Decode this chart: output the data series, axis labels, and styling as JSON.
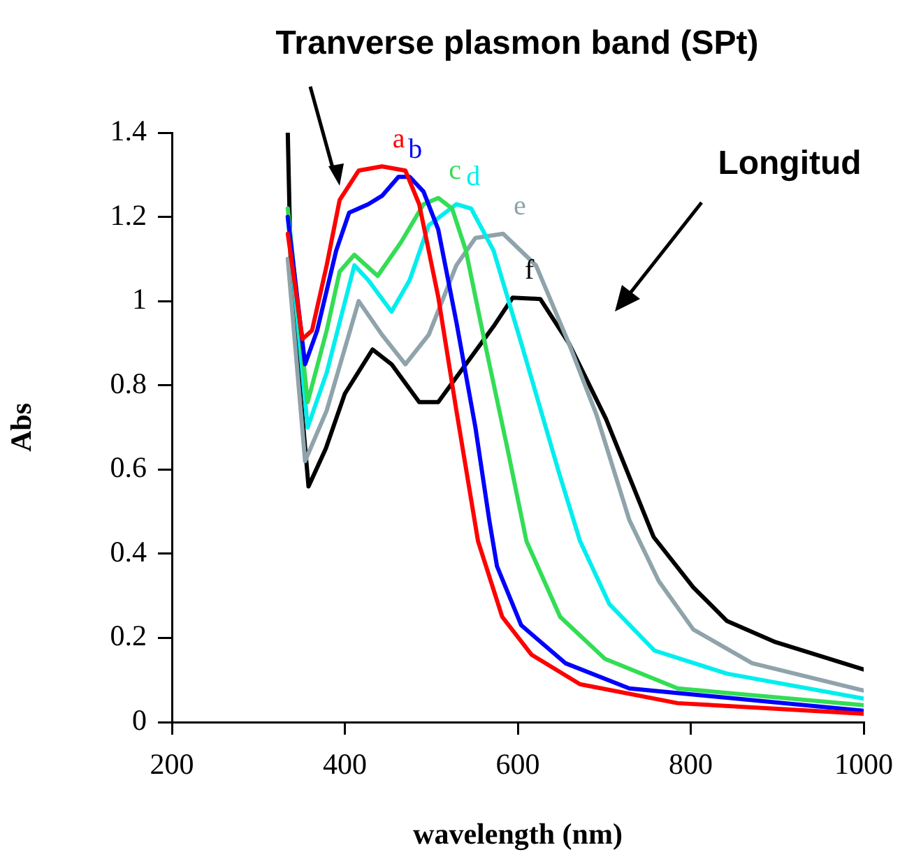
{
  "chart_data": {
    "type": "line",
    "xlabel": "wavelength (nm)",
    "ylabel": "Abs",
    "xlim": [
      200,
      1000
    ],
    "xticks": [
      200,
      400,
      600,
      800,
      1000
    ],
    "ylim": [
      0,
      1.4
    ],
    "yticks": [
      0,
      0.2,
      0.4,
      0.6,
      0.8,
      1,
      1.2,
      1.4
    ],
    "grid": false,
    "legend": false,
    "marker": "none",
    "line_style": "solid",
    "annotations": [
      "Tranverse plasmon band (SPt)",
      "Longitud"
    ],
    "series": [
      {
        "name": "a",
        "color": "#ff0000",
        "x": [
          334,
          351,
          362,
          379,
          394,
          416,
          443,
          470,
          486,
          508,
          529,
          554,
          582,
          616,
          672,
          785,
          1000
        ],
        "values": [
          1.16,
          0.91,
          0.93,
          1.085,
          1.24,
          1.31,
          1.32,
          1.31,
          1.23,
          1.01,
          0.74,
          0.43,
          0.25,
          0.16,
          0.09,
          0.045,
          0.02
        ]
      },
      {
        "name": "b",
        "color": "#0000ff",
        "x": [
          334,
          354,
          368,
          390,
          405,
          427,
          443,
          462,
          475,
          491,
          508,
          529,
          551,
          567,
          576,
          604,
          655,
          729,
          1000
        ],
        "values": [
          1.2,
          0.85,
          0.93,
          1.12,
          1.21,
          1.23,
          1.25,
          1.295,
          1.295,
          1.26,
          1.17,
          0.95,
          0.7,
          0.48,
          0.37,
          0.23,
          0.14,
          0.08,
          0.027
        ]
      },
      {
        "name": "c",
        "color": "#33dd55",
        "x": [
          334,
          357,
          379,
          394,
          411,
          438,
          465,
          491,
          508,
          524,
          540,
          562,
          588,
          610,
          649,
          701,
          785,
          1000
        ],
        "values": [
          1.22,
          0.76,
          0.93,
          1.07,
          1.11,
          1.06,
          1.14,
          1.23,
          1.245,
          1.22,
          1.12,
          0.9,
          0.65,
          0.43,
          0.25,
          0.15,
          0.08,
          0.04
        ]
      },
      {
        "name": "d",
        "color": "#00eeee",
        "x": [
          334,
          357,
          379,
          411,
          427,
          454,
          475,
          497,
          529,
          546,
          572,
          604,
          648,
          672,
          706,
          758,
          842,
          1000
        ],
        "values": [
          1.2,
          0.7,
          0.83,
          1.085,
          1.05,
          0.975,
          1.05,
          1.18,
          1.23,
          1.22,
          1.12,
          0.9,
          0.59,
          0.43,
          0.28,
          0.17,
          0.115,
          0.056
        ]
      },
      {
        "name": "e",
        "color": "#8fa3ab",
        "x": [
          334,
          354,
          379,
          416,
          443,
          470,
          497,
          529,
          551,
          583,
          621,
          659,
          691,
          729,
          763,
          803,
          871,
          1000
        ],
        "values": [
          1.1,
          0.62,
          0.74,
          1.0,
          0.92,
          0.85,
          0.92,
          1.085,
          1.15,
          1.16,
          1.085,
          0.9,
          0.73,
          0.48,
          0.335,
          0.22,
          0.14,
          0.075
        ]
      },
      {
        "name": "f",
        "color": "#000000",
        "x": [
          334,
          338,
          358,
          378,
          400,
          432,
          454,
          486,
          508,
          540,
          572,
          594,
          626,
          659,
          702,
          757,
          803,
          842,
          898,
          1000
        ],
        "values": [
          1.4,
          1.03,
          0.56,
          0.65,
          0.78,
          0.885,
          0.85,
          0.76,
          0.76,
          0.85,
          0.94,
          1.008,
          1.005,
          0.9,
          0.72,
          0.44,
          0.32,
          0.24,
          0.19,
          0.125
        ]
      }
    ]
  }
}
